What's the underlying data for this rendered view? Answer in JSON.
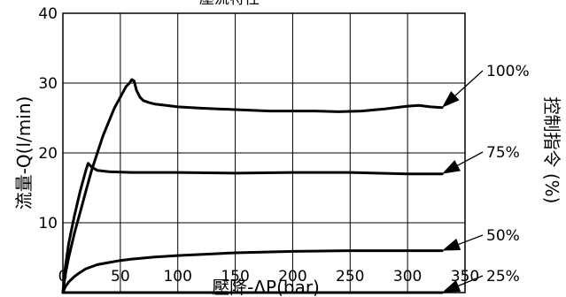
{
  "chart_data": {
    "type": "line",
    "title": "",
    "top_title_partial": "壓流特性",
    "xlabel": "壓降-ΔP(bar)",
    "ylabel": "流量-Q(l/min)",
    "right_label": "控制指令 (%)",
    "xlim": [
      0,
      350
    ],
    "ylim": [
      0,
      40
    ],
    "x_ticks": [
      0,
      50,
      100,
      150,
      200,
      250,
      300,
      350
    ],
    "y_ticks": [
      10,
      20,
      30,
      40
    ],
    "grid": true,
    "series": [
      {
        "name": "100%",
        "x": [
          0,
          2,
          5,
          10,
          15,
          20,
          25,
          30,
          35,
          40,
          45,
          50,
          55,
          58,
          60,
          62,
          64,
          67,
          70,
          75,
          80,
          90,
          100,
          120,
          150,
          180,
          200,
          220,
          240,
          260,
          280,
          300,
          310,
          320,
          330
        ],
        "y": [
          0,
          2.5,
          5,
          8.5,
          11.5,
          14.5,
          17.5,
          20,
          22.5,
          24.5,
          26.5,
          28,
          29.5,
          30,
          30.5,
          30.3,
          29,
          28,
          27.5,
          27.2,
          27,
          26.8,
          26.6,
          26.4,
          26.2,
          26,
          26,
          26,
          25.9,
          26,
          26.3,
          26.7,
          26.8,
          26.6,
          26.5
        ]
      },
      {
        "name": "75%",
        "x": [
          0,
          2,
          5,
          10,
          15,
          20,
          22,
          25,
          30,
          40,
          60,
          100,
          150,
          200,
          250,
          300,
          330
        ],
        "y": [
          0,
          3.5,
          7,
          11,
          14.5,
          17.5,
          18.5,
          18,
          17.5,
          17.3,
          17.2,
          17.2,
          17.1,
          17.2,
          17.2,
          17,
          17
        ]
      },
      {
        "name": "50%",
        "x": [
          0,
          2,
          5,
          10,
          15,
          20,
          30,
          40,
          50,
          60,
          80,
          100,
          150,
          200,
          250,
          300,
          330
        ],
        "y": [
          0,
          0.8,
          1.5,
          2.3,
          2.9,
          3.4,
          4,
          4.3,
          4.6,
          4.8,
          5.1,
          5.3,
          5.7,
          5.9,
          6,
          6,
          6
        ]
      },
      {
        "name": "25%",
        "x": [
          0,
          50,
          100,
          150,
          200,
          250,
          300,
          330
        ],
        "y": [
          0,
          0,
          0,
          0,
          0,
          0,
          0,
          0
        ]
      }
    ]
  },
  "colors": {
    "line": "#000000",
    "grid": "#000000",
    "background": "#ffffff"
  }
}
